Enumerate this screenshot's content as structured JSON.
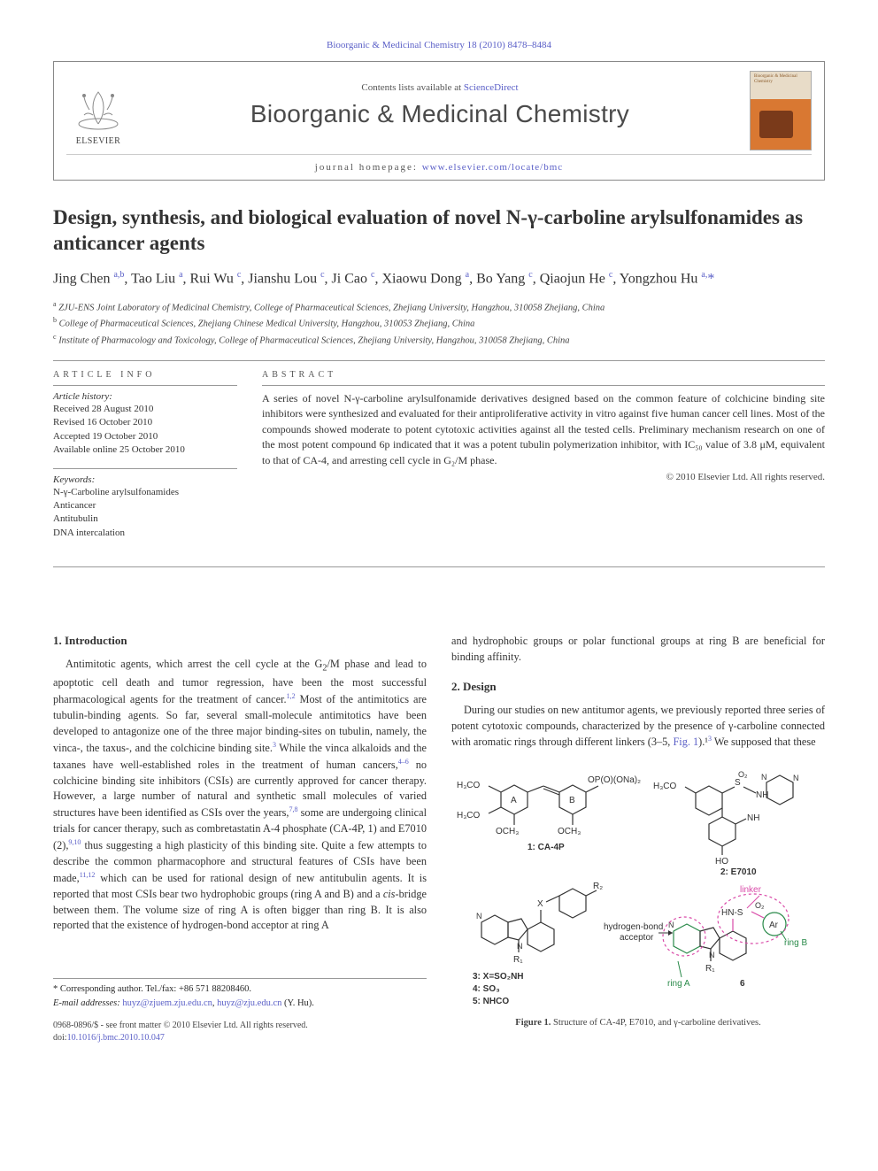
{
  "citation": "Bioorganic & Medicinal Chemistry 18 (2010) 8478–8484",
  "header": {
    "contents_prefix": "Contents lists available at ",
    "contents_link": "ScienceDirect",
    "journal": "Bioorganic & Medicinal Chemistry",
    "homepage_prefix": "journal homepage: ",
    "homepage_link": "www.elsevier.com/locate/bmc",
    "publisher": "ELSEVIER",
    "cover_label_top": "Bioorganic & Medicinal Chemistry"
  },
  "title": "Design, synthesis, and biological evaluation of novel N-γ-carboline arylsulfonamides as anticancer agents",
  "authors_html": "Jing Chen <sup>a,b</sup>, Tao Liu <sup>a</sup>, Rui Wu <sup>c</sup>, Jianshu Lou <sup>c</sup>, Ji Cao <sup>c</sup>, Xiaowu Dong <sup>a</sup>, Bo Yang <sup>c</sup>, Qiaojun He <sup>c</sup>, Yongzhou Hu <sup>a,</sup><a href='#'>*</a>",
  "affiliations": [
    "a ZJU-ENS Joint Laboratory of Medicinal Chemistry, College of Pharmaceutical Sciences, Zhejiang University, Hangzhou, 310058 Zhejiang, China",
    "b College of Pharmaceutical Sciences, Zhejiang Chinese Medical University, Hangzhou, 310053 Zhejiang, China",
    "c Institute of Pharmacology and Toxicology, College of Pharmaceutical Sciences, Zhejiang University, Hangzhou, 310058 Zhejiang, China"
  ],
  "article_info": {
    "heading": "ARTICLE INFO",
    "history_label": "Article history:",
    "history": [
      "Received 28 August 2010",
      "Revised 16 October 2010",
      "Accepted 19 October 2010",
      "Available online 25 October 2010"
    ],
    "keywords_label": "Keywords:",
    "keywords": [
      "N-γ-Carboline arylsulfonamides",
      "Anticancer",
      "Antitubulin",
      "DNA intercalation"
    ]
  },
  "abstract": {
    "heading": "ABSTRACT",
    "text": "A series of novel N-γ-carboline arylsulfonamide derivatives designed based on the common feature of colchicine binding site inhibitors were synthesized and evaluated for their antiproliferative activity in vitro against five human cancer cell lines. Most of the compounds showed moderate to potent cytotoxic activities against all the tested cells. Preliminary mechanism research on one of the most potent compound 6p indicated that it was a potent tubulin polymerization inhibitor, with IC₅₀ value of 3.8 μM, equivalent to that of CA-4, and arresting cell cycle in G₂/M phase.",
    "copyright": "© 2010 Elsevier Ltd. All rights reserved."
  },
  "body": {
    "intro_heading": "1. Introduction",
    "intro_text": "Antimitotic agents, which arrest the cell cycle at the G₂/M phase and lead to apoptotic cell death and tumor regression, have been the most successful pharmacological agents for the treatment of cancer.¹,² Most of the antimitotics are tubulin-binding agents. So far, several small-molecule antimitotics have been developed to antagonize one of the three major binding-sites on tubulin, namely, the vinca-, the taxus-, and the colchicine binding site.³ While the vinca alkaloids and the taxanes have well-established roles in the treatment of human cancers,⁴⁻⁶ no colchicine binding site inhibitors (CSIs) are currently approved for cancer therapy. However, a large number of natural and synthetic small molecules of varied structures have been identified as CSIs over the years,⁷,⁸ some are undergoing clinical trials for cancer therapy, such as combretastatin A-4 phosphate (CA-4P, 1) and E7010 (2),⁹,¹⁰ thus suggesting a high plasticity of this binding site. Quite a few attempts to describe the common pharmacophore and structural features of CSIs have been made,¹¹,¹² which can be used for rational design of new antitubulin agents. It is reported that most CSIs bear two hydrophobic groups (ring A and B) and a cis-bridge between them. The volume size of ring A is often bigger than ring B. It is also reported that the existence of hydrogen-bond acceptor at ring A",
    "col2_top": "and hydrophobic groups or polar functional groups at ring B are beneficial for binding affinity.",
    "design_heading": "2. Design",
    "design_text": "During our studies on new antitumor agents, we previously reported three series of potent cytotoxic compounds, characterized by the presence of γ-carboline connected with aromatic rings through different linkers (3–5, Fig. 1).¹³ We supposed that these"
  },
  "corresponding": {
    "line1": "* Corresponding author. Tel./fax: +86 571 88208460.",
    "email_label": "E-mail addresses:",
    "email1": "huyz@zjuem.zju.edu.cn",
    "email2": "huyz@zju.edu.cn",
    "email_suffix": " (Y. Hu)."
  },
  "doi": {
    "line1": "0968-0896/$ - see front matter © 2010 Elsevier Ltd. All rights reserved.",
    "line2_prefix": "doi:",
    "line2_link": "10.1016/j.bmc.2010.10.047"
  },
  "figure1": {
    "caption_bold": "Figure 1.",
    "caption_text": " Structure of CA-4P, E7010, and γ-carboline derivatives.",
    "labels": {
      "ca4p": "1: CA-4P",
      "e7010": "2: E7010",
      "x_so2nh": "3: X=SO₂NH",
      "x_so3": "4: SO₃",
      "x_nhco": "5: NHCO",
      "six": "6",
      "ringA": "ring A",
      "ringB": "ring B",
      "linker": "linker",
      "hbond": "hydrogen-bond acceptor",
      "h3co": "H₃CO",
      "och3": "OCH₃",
      "opo": "OP(O)(ONa)₂",
      "ho": "HO",
      "nh": "NH",
      "r1": "R₁",
      "r2": "R₂",
      "ar": "Ar",
      "hns": "HN-S",
      "x": "X",
      "n": "N",
      "A": "A",
      "B": "B",
      "o2": "O₂"
    },
    "colors": {
      "struct": "#333333",
      "ringA": "#2a8a4a",
      "ringB": "#2a8a4a",
      "linker": "#d94aa8",
      "hbond": "#333333",
      "dashed": "#d94aa8"
    }
  }
}
